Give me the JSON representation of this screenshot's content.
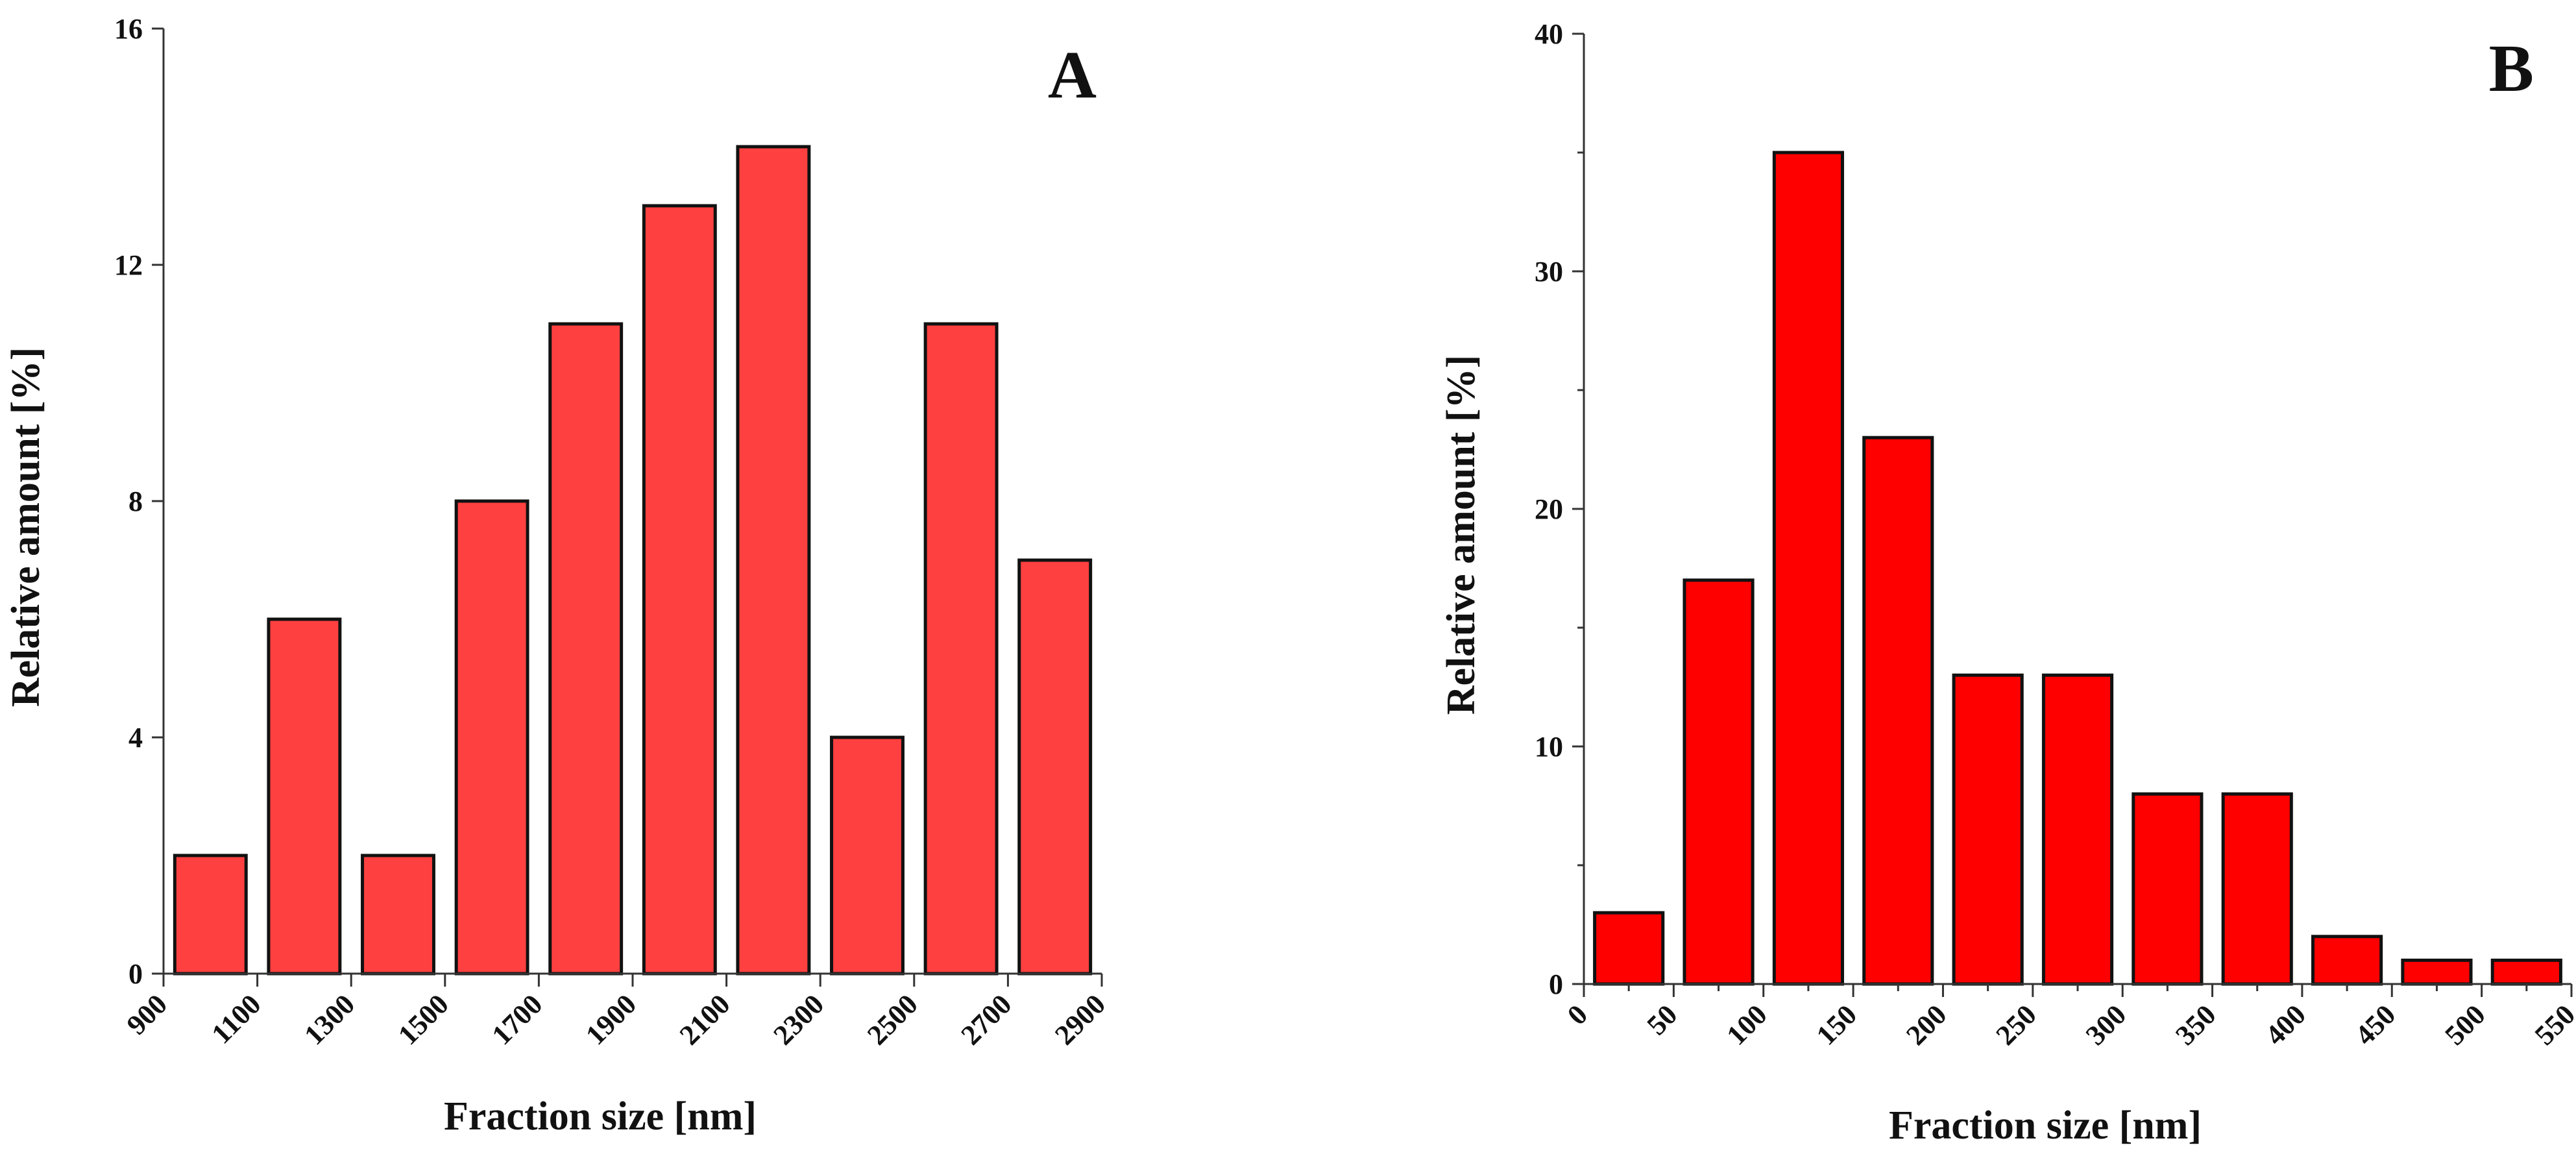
{
  "chart_data": [
    {
      "type": "bar",
      "panel_label": "A",
      "xlabel": "Fraction size [nm]",
      "ylabel": "Relative amount [%]",
      "bar_color": "#ff4040",
      "bin_edges": [
        900,
        1100,
        1300,
        1500,
        1700,
        1900,
        2100,
        2300,
        2500,
        2700,
        2900
      ],
      "x_ticks": [
        "900",
        "1100",
        "1300",
        "1500",
        "1700",
        "1900",
        "2100",
        "2300",
        "2500",
        "2700",
        "2900"
      ],
      "values": [
        2,
        6,
        2,
        8,
        11,
        13,
        14,
        4,
        11,
        7
      ],
      "ylim": [
        0,
        16
      ],
      "y_ticks": [
        "0",
        "4",
        "8",
        "12",
        "16"
      ],
      "grid": false,
      "legend": "none"
    },
    {
      "type": "bar",
      "panel_label": "B",
      "xlabel": "Fraction size [nm]",
      "ylabel": "Relative amount [%]",
      "bar_color": "#ff0000",
      "bin_edges": [
        0,
        50,
        100,
        150,
        200,
        250,
        300,
        350,
        400,
        450,
        500,
        550
      ],
      "x_ticks": [
        "0",
        "50",
        "100",
        "150",
        "200",
        "250",
        "300",
        "350",
        "400",
        "450",
        "500",
        "550"
      ],
      "values": [
        3,
        17,
        35,
        23,
        13,
        13,
        8,
        8,
        2,
        1,
        1
      ],
      "ylim": [
        0,
        40
      ],
      "y_ticks": [
        "0",
        "10",
        "20",
        "30",
        "40"
      ],
      "grid": false,
      "legend": "none"
    }
  ]
}
